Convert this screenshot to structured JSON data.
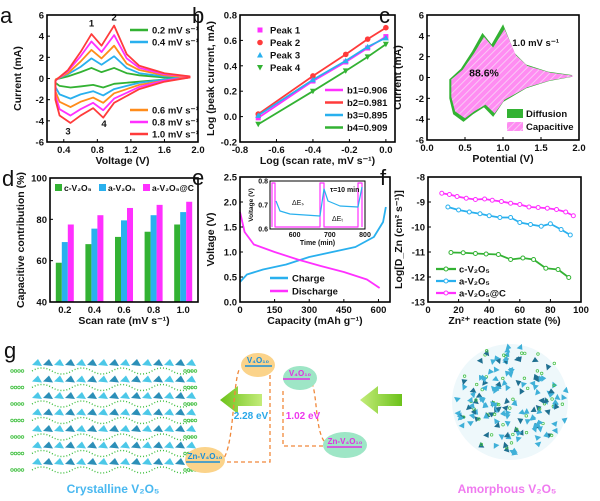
{
  "colors": {
    "green": "#33b233",
    "blue": "#29b0ee",
    "orange": "#ff8c1a",
    "magenta": "#ff30ff",
    "red": "#ff3b3b",
    "dash": "#f0883a",
    "arrow": "#8fd12a"
  },
  "chart_data": [
    {
      "panel": "a",
      "type": "line",
      "xlabel": "Voltage (V)",
      "ylabel": "Current (mA)",
      "xlim": [
        0.2,
        2.0
      ],
      "ylim": [
        -6,
        6
      ],
      "xticks": [
        "0.4",
        "0.8",
        "1.2",
        "1.6",
        "2.0"
      ],
      "xtick_values": [
        0.4,
        0.8,
        1.2,
        1.6,
        2.0
      ],
      "yticks": [
        "-6",
        "-4",
        "-2",
        "0",
        "2",
        "4",
        "6"
      ],
      "ytick_values": [
        -6,
        -4,
        -2,
        0,
        2,
        4,
        6
      ],
      "anodic_v": [
        0.3,
        0.45,
        0.6,
        0.73,
        0.85,
        1.0,
        1.15,
        1.3,
        1.6,
        1.9
      ],
      "cathodic_v": [
        1.9,
        1.6,
        1.3,
        1.0,
        0.87,
        0.75,
        0.6,
        0.48,
        0.35,
        0.3
      ],
      "peak_labels": [
        "1",
        "2",
        "3",
        "4"
      ],
      "series": [
        {
          "name": "0.2 mV s⁻¹",
          "color": "green",
          "anodic": [
            -0.1,
            0.2,
            0.6,
            1.0,
            0.6,
            1.0,
            0.5,
            0.3,
            0.1,
            0.1
          ],
          "cathodic": [
            0.1,
            -0.1,
            -0.3,
            -0.5,
            -0.85,
            -0.6,
            -0.75,
            -0.85,
            -0.7,
            -0.4
          ]
        },
        {
          "name": "0.4 mV s⁻¹",
          "color": "blue",
          "anodic": [
            -0.1,
            0.4,
            1.1,
            1.9,
            1.3,
            2.1,
            1.0,
            0.5,
            0.2,
            0.1
          ],
          "cathodic": [
            0.1,
            -0.1,
            -0.4,
            -1.0,
            -1.6,
            -1.2,
            -1.5,
            -1.9,
            -1.5,
            -0.8
          ]
        },
        {
          "name": "0.6 mV s⁻¹",
          "color": "orange",
          "anodic": [
            -0.1,
            0.5,
            1.6,
            2.7,
            1.9,
            3.1,
            1.4,
            0.8,
            0.3,
            0.1
          ],
          "cathodic": [
            0.1,
            -0.2,
            -0.6,
            -1.4,
            -2.3,
            -1.8,
            -2.2,
            -2.7,
            -2.2,
            -1.2
          ]
        },
        {
          "name": "0.8 mV s⁻¹",
          "color": "magenta",
          "anodic": [
            -0.2,
            0.7,
            2.1,
            3.5,
            2.5,
            4.1,
            1.9,
            1.0,
            0.4,
            0.2
          ],
          "cathodic": [
            0.1,
            -0.2,
            -0.8,
            -1.9,
            -3.0,
            -2.3,
            -2.9,
            -3.5,
            -2.9,
            -1.6
          ]
        },
        {
          "name": "1.0 mV s⁻¹",
          "color": "red",
          "anodic": [
            -0.2,
            0.8,
            2.5,
            4.2,
            3.1,
            5.0,
            2.3,
            1.2,
            0.5,
            0.2
          ],
          "cathodic": [
            0.1,
            -0.3,
            -1.0,
            -2.3,
            -3.7,
            -2.8,
            -3.5,
            -4.2,
            -3.5,
            -2.0
          ]
        }
      ]
    },
    {
      "panel": "b",
      "type": "scatter",
      "xlabel": "Log (scan rate, mV s⁻¹)",
      "ylabel": "Log (peak current, mA)",
      "xlim": [
        -0.8,
        0.05
      ],
      "ylim": [
        -0.2,
        0.8
      ],
      "xticks": [
        "-0.8",
        "-0.6",
        "-0.4",
        "-0.2",
        "0.0"
      ],
      "xtick_values": [
        -0.8,
        -0.6,
        -0.4,
        -0.2,
        0.0
      ],
      "yticks": [
        "-0.2",
        "0.0",
        "0.2",
        "0.4",
        "0.6",
        "0.8"
      ],
      "ytick_values": [
        -0.2,
        0.0,
        0.2,
        0.4,
        0.6,
        0.8
      ],
      "x": [
        -0.7,
        -0.4,
        -0.22,
        -0.1,
        0.0
      ],
      "series": [
        {
          "name": "Peak 1",
          "fit": "b1=0.906",
          "color": "magenta",
          "marker": "square",
          "values": [
            -0.01,
            0.28,
            0.43,
            0.54,
            0.63
          ]
        },
        {
          "name": "Peak 2",
          "fit": "b2=0.981",
          "color": "red",
          "marker": "circle",
          "values": [
            0.02,
            0.32,
            0.49,
            0.61,
            0.7
          ]
        },
        {
          "name": "Peak 3",
          "fit": "b3=0.895",
          "color": "blue",
          "marker": "triangle-up",
          "values": [
            0.01,
            0.29,
            0.44,
            0.55,
            0.62
          ]
        },
        {
          "name": "Peak 4",
          "fit": "b4=0.909",
          "color": "green",
          "marker": "triangle-down",
          "values": [
            -0.06,
            0.2,
            0.36,
            0.47,
            0.57
          ]
        }
      ]
    },
    {
      "panel": "c",
      "type": "area",
      "xlabel": "Potential (V)",
      "ylabel": "Current (mA)",
      "xlim": [
        0.0,
        2.0
      ],
      "ylim": [
        -6,
        6
      ],
      "xticks": [
        "0.0",
        "0.5",
        "1.0",
        "1.5",
        "2.0"
      ],
      "xtick_values": [
        0,
        0.5,
        1.0,
        1.5,
        2.0
      ],
      "yticks": [
        "-6",
        "-4",
        "-2",
        "0",
        "2",
        "4",
        "6"
      ],
      "ytick_values": [
        -6,
        -4,
        -2,
        0,
        2,
        4,
        6
      ],
      "annotation": "1.0 mV s⁻¹",
      "capacitive_label": "88.6%",
      "capacitive_fraction": 0.886,
      "series": [
        {
          "name": "Diffusion",
          "color": "green"
        },
        {
          "name": "Capacitive",
          "color": "magenta"
        }
      ]
    },
    {
      "panel": "d",
      "type": "bar",
      "xlabel": "Scan rate (mV s⁻¹)",
      "ylabel": "Capacitive contribution (%)",
      "ylim": [
        40,
        100
      ],
      "categories": [
        "0.2",
        "0.4",
        "0.6",
        "0.8",
        "1.0"
      ],
      "yticks": [
        "40",
        "60",
        "80",
        "100"
      ],
      "ytick_values": [
        40,
        60,
        80,
        100
      ],
      "series": [
        {
          "name": "c-V₂O₅",
          "color": "green",
          "values": [
            59,
            68,
            71.5,
            74,
            77.5
          ]
        },
        {
          "name": "a-V₂O₅",
          "color": "blue",
          "values": [
            69,
            75.5,
            79.5,
            82,
            83.5
          ]
        },
        {
          "name": "a-V₂O₅@C",
          "color": "magenta",
          "values": [
            77.5,
            82,
            85.5,
            87,
            88.5
          ]
        }
      ]
    },
    {
      "panel": "e",
      "type": "line",
      "xlabel": "Capacity (mAh g⁻¹)",
      "ylabel": "Voltage (V)",
      "xlim": [
        0,
        650
      ],
      "ylim": [
        0,
        2.5
      ],
      "xticks": [
        "0",
        "150",
        "300",
        "450",
        "600"
      ],
      "xtick_values": [
        0,
        150,
        300,
        450,
        600
      ],
      "yticks": [
        "0.0",
        "0.5",
        "1.0",
        "1.5",
        "2.0",
        "2.5"
      ],
      "ytick_values": [
        0,
        0.5,
        1.0,
        1.5,
        2.0,
        2.5
      ],
      "series": [
        {
          "name": "Charge",
          "color": "blue",
          "x": [
            0,
            30,
            100,
            200,
            300,
            400,
            500,
            580,
            620,
            632
          ],
          "values": [
            0.4,
            0.55,
            0.65,
            0.75,
            0.9,
            1.0,
            1.1,
            1.3,
            1.6,
            1.9
          ]
        },
        {
          "name": "Discharge",
          "color": "magenta",
          "x": [
            0,
            20,
            60,
            150,
            250,
            350,
            450,
            550,
            605
          ],
          "values": [
            1.8,
            1.4,
            1.15,
            1.0,
            0.85,
            0.72,
            0.6,
            0.45,
            0.28
          ]
        }
      ],
      "inset": {
        "xlabel": "Time (min)",
        "ylabel": "Voltage (V)",
        "xlim": [
          530,
          800
        ],
        "ylim": [
          0.6,
          0.8
        ],
        "xticks": [
          "600",
          "700",
          "800"
        ],
        "xtick_values": [
          600,
          700,
          800
        ],
        "yticks": [
          "0.6",
          "0.7",
          "0.8"
        ],
        "ytick_values": [
          0.6,
          0.7,
          0.8
        ],
        "tau_label": "τ=10 min",
        "delta_es": "ΔEₛ",
        "delta_et": "ΔEₜ"
      }
    },
    {
      "panel": "f",
      "type": "line",
      "xlabel": "Zn²⁺ reaction state (%)",
      "ylabel": "Log[D_Zn (cm² s⁻¹)]",
      "xlim": [
        0,
        100
      ],
      "ylim": [
        -13,
        -8
      ],
      "xticks": [
        "0",
        "20",
        "40",
        "60",
        "80",
        "100"
      ],
      "xtick_values": [
        0,
        20,
        40,
        60,
        80,
        100
      ],
      "yticks": [
        "-13",
        "-12",
        "-11",
        "-10",
        "-9",
        "-8"
      ],
      "ytick_values": [
        -13,
        -12,
        -11,
        -10,
        -9,
        -8
      ],
      "series": [
        {
          "name": "c-V₂O₅",
          "color": "green",
          "x": [
            15,
            23,
            31,
            38,
            46,
            54,
            62,
            69,
            77,
            85,
            92
          ],
          "values": [
            -11.02,
            -11.03,
            -11.06,
            -11.08,
            -11.1,
            -11.3,
            -11.24,
            -11.3,
            -11.65,
            -11.7,
            -12.02
          ]
        },
        {
          "name": "a-V₂O₅",
          "color": "blue",
          "x": [
            13,
            20,
            27,
            34,
            40,
            47,
            54,
            60,
            67,
            74,
            80,
            87,
            93
          ],
          "values": [
            -9.2,
            -9.32,
            -9.4,
            -9.47,
            -9.55,
            -9.62,
            -9.62,
            -9.82,
            -9.9,
            -9.97,
            -9.87,
            -10.1,
            -10.32
          ]
        },
        {
          "name": "a-V₂O₅@C",
          "color": "magenta",
          "x": [
            9,
            14,
            19,
            25,
            31,
            37,
            42,
            48,
            54,
            60,
            66,
            72,
            78,
            84,
            90,
            95
          ],
          "values": [
            -8.65,
            -8.7,
            -8.78,
            -8.85,
            -8.9,
            -8.88,
            -8.93,
            -8.98,
            -9.05,
            -9.1,
            -9.2,
            -9.22,
            -9.25,
            -9.3,
            -9.4,
            -9.55
          ]
        }
      ]
    }
  ],
  "panel_g": {
    "label": "g",
    "crystalline_label": "Crystalline V₂O₅",
    "amorphous_label": "Amorphous V₂O₅",
    "state_high_left": "V₄O₁₀",
    "state_high_right": "V₄O₁₀",
    "state_low_left": "Zn-V₄O₁₀",
    "state_low_right": "Zn-V₄O₁₀",
    "barrier_crystalline": "2.28 eV",
    "barrier_amorphous": "1.02 eV"
  }
}
